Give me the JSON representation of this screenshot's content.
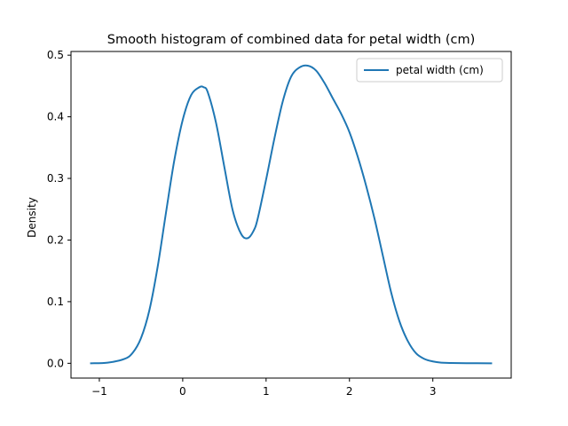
{
  "chart_data": {
    "type": "line",
    "title": "Smooth histogram of combined data for petal width (cm)",
    "xlabel": "",
    "ylabel": "Density",
    "xlim": [
      -1.34,
      3.94
    ],
    "ylim": [
      -0.024,
      0.506
    ],
    "xticks": [
      -1,
      0,
      1,
      2,
      3
    ],
    "yticks": [
      0.0,
      0.1,
      0.2,
      0.3,
      0.4,
      0.5
    ],
    "xtick_labels": [
      "−1",
      "0",
      "1",
      "2",
      "3"
    ],
    "ytick_labels": [
      "0.0",
      "0.1",
      "0.2",
      "0.3",
      "0.4",
      "0.5"
    ],
    "grid": false,
    "legend_position": "top-right",
    "series": [
      {
        "name": "petal width (cm)",
        "color": "#1f77b4",
        "x": [
          -1.1,
          -0.9,
          -0.7,
          -0.6,
          -0.5,
          -0.4,
          -0.3,
          -0.2,
          -0.1,
          0.0,
          0.1,
          0.2,
          0.25,
          0.3,
          0.4,
          0.5,
          0.6,
          0.7,
          0.78,
          0.85,
          0.9,
          1.0,
          1.1,
          1.2,
          1.3,
          1.4,
          1.5,
          1.6,
          1.7,
          1.8,
          1.9,
          2.0,
          2.1,
          2.2,
          2.3,
          2.4,
          2.5,
          2.6,
          2.7,
          2.8,
          2.9,
          3.0,
          3.1,
          3.2,
          3.4,
          3.7
        ],
        "y": [
          0.0,
          0.001,
          0.007,
          0.017,
          0.041,
          0.086,
          0.157,
          0.245,
          0.33,
          0.395,
          0.435,
          0.448,
          0.448,
          0.44,
          0.39,
          0.318,
          0.248,
          0.21,
          0.203,
          0.215,
          0.235,
          0.298,
          0.365,
          0.425,
          0.465,
          0.48,
          0.483,
          0.475,
          0.455,
          0.43,
          0.405,
          0.375,
          0.335,
          0.288,
          0.235,
          0.175,
          0.115,
          0.068,
          0.036,
          0.016,
          0.007,
          0.003,
          0.001,
          0.0005,
          0.0001,
          0.0
        ]
      }
    ]
  }
}
